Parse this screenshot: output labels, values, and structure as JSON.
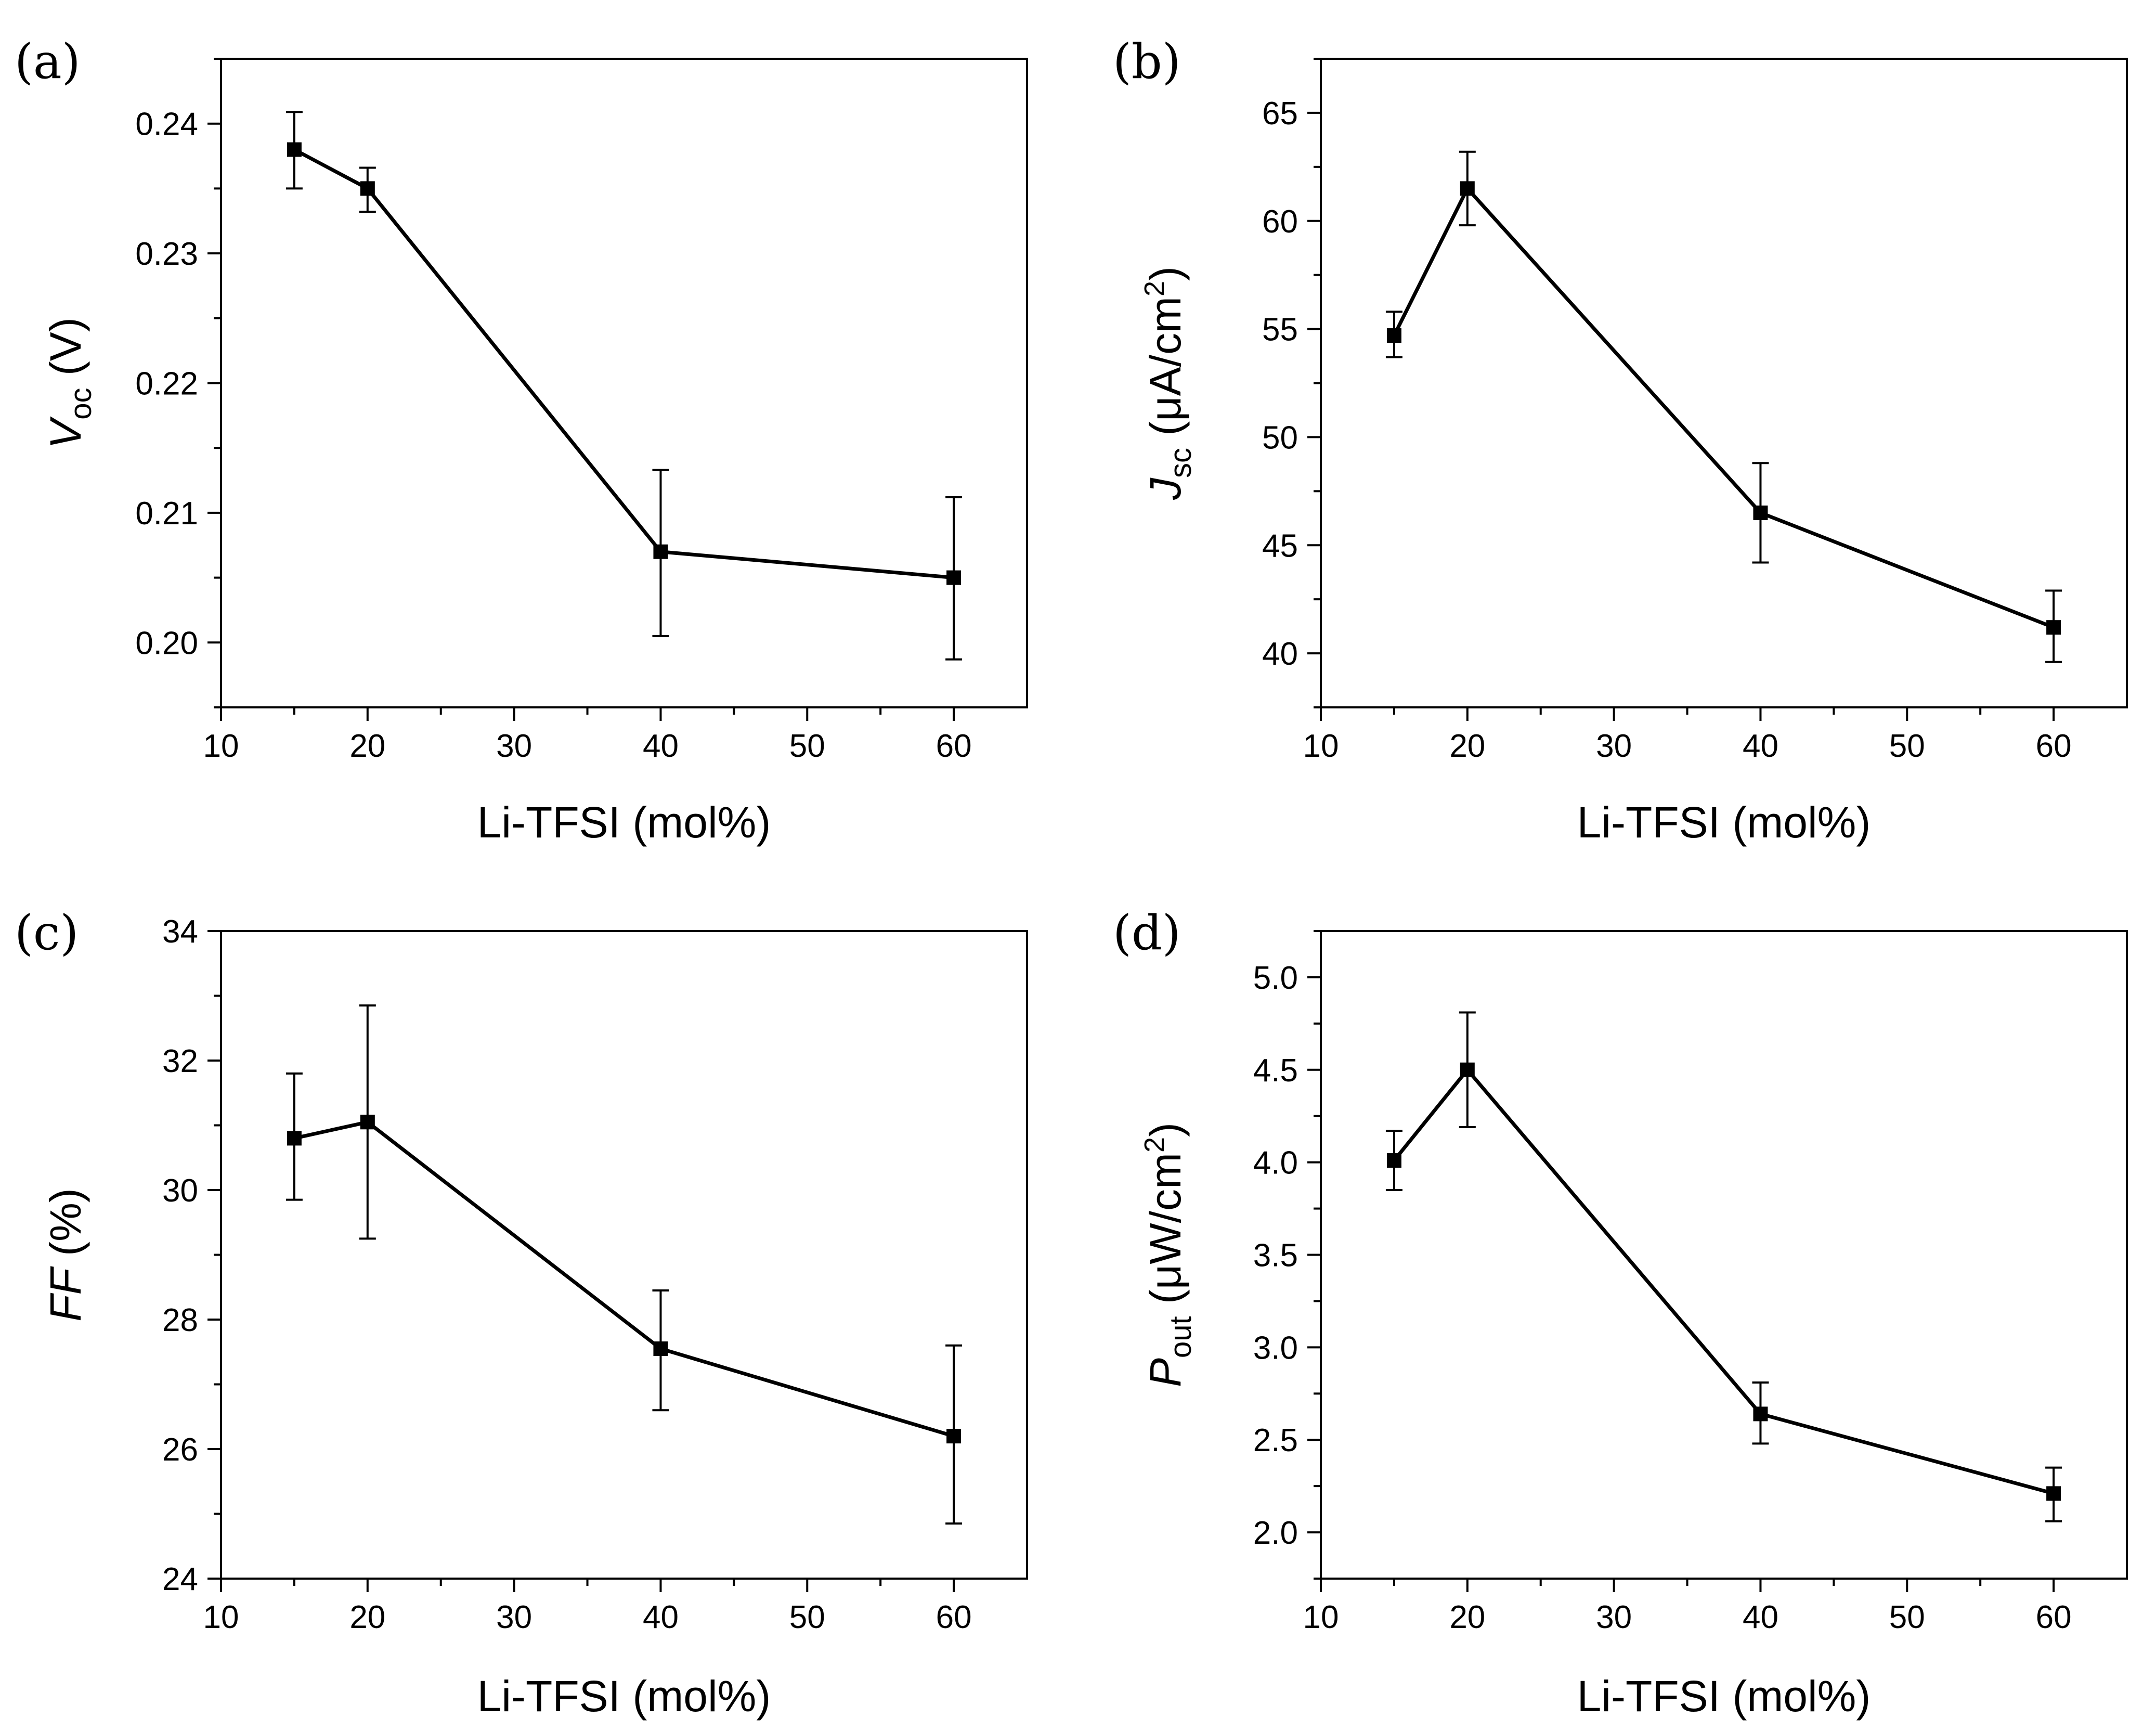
{
  "chart_data": [
    {
      "id": "a",
      "type": "line",
      "panel_label": "(a)",
      "xlabel": "Li-TFSI (mol%)",
      "ylabel": {
        "main": "V",
        "sub": "oc",
        "suffix": " (V)",
        "sup": ""
      },
      "xlim": [
        10,
        65
      ],
      "ylim": [
        0.195,
        0.245
      ],
      "xticks": [
        10,
        20,
        30,
        40,
        50,
        60
      ],
      "yticks": [
        0.2,
        0.21,
        0.22,
        0.23,
        0.24
      ],
      "ytick_labels": [
        "0.20",
        "0.21",
        "0.22",
        "0.23",
        "0.24"
      ],
      "x": [
        15,
        20,
        40,
        60
      ],
      "y": [
        0.238,
        0.235,
        0.207,
        0.205
      ],
      "err_low": [
        0.235,
        0.2332,
        0.2005,
        0.1987
      ],
      "err_high": [
        0.2409,
        0.2366,
        0.2133,
        0.2112
      ]
    },
    {
      "id": "b",
      "type": "line",
      "panel_label": "(b)",
      "xlabel": "Li-TFSI (mol%)",
      "ylabel": {
        "main": "J",
        "sub": "sc",
        "suffix": " (μA/cm",
        "sup": "2",
        "tail": ")"
      },
      "xlim": [
        10,
        65
      ],
      "ylim": [
        37.5,
        67.5
      ],
      "xticks": [
        10,
        20,
        30,
        40,
        50,
        60
      ],
      "yticks": [
        40,
        45,
        50,
        55,
        60,
        65
      ],
      "ytick_labels": [
        "40",
        "45",
        "50",
        "55",
        "60",
        "65"
      ],
      "x": [
        15,
        20,
        40,
        60
      ],
      "y": [
        54.7,
        61.5,
        46.5,
        41.2
      ],
      "err_low": [
        53.7,
        59.8,
        44.2,
        39.6
      ],
      "err_high": [
        55.8,
        63.2,
        48.8,
        42.9
      ]
    },
    {
      "id": "c",
      "type": "line",
      "panel_label": "(c)",
      "xlabel": "Li-TFSI (mol%)",
      "ylabel": {
        "main": "FF",
        "sub": "",
        "suffix": " (%)",
        "sup": ""
      },
      "xlim": [
        10,
        65
      ],
      "ylim": [
        24,
        34
      ],
      "xticks": [
        10,
        20,
        30,
        40,
        50,
        60
      ],
      "yticks": [
        24,
        26,
        28,
        30,
        32,
        34
      ],
      "ytick_labels": [
        "24",
        "26",
        "28",
        "30",
        "32",
        "34"
      ],
      "x": [
        15,
        20,
        40,
        60
      ],
      "y": [
        30.8,
        31.05,
        27.55,
        26.2
      ],
      "err_low": [
        29.85,
        29.25,
        26.6,
        24.85
      ],
      "err_high": [
        31.8,
        32.85,
        28.45,
        27.6
      ]
    },
    {
      "id": "d",
      "type": "line",
      "panel_label": "(d)",
      "xlabel": "Li-TFSI (mol%)",
      "ylabel": {
        "main": "P",
        "sub": "out",
        "suffix": " (μW/cm",
        "sup": "2",
        "tail": ")"
      },
      "xlim": [
        10,
        65
      ],
      "ylim": [
        1.75,
        5.25
      ],
      "xticks": [
        10,
        20,
        30,
        40,
        50,
        60
      ],
      "yticks": [
        2.0,
        2.5,
        3.0,
        3.5,
        4.0,
        4.5,
        5.0
      ],
      "ytick_labels": [
        "2.0",
        "2.5",
        "3.0",
        "3.5",
        "4.0",
        "4.5",
        "5.0"
      ],
      "x": [
        15,
        20,
        40,
        60
      ],
      "y": [
        4.01,
        4.5,
        2.64,
        2.21
      ],
      "err_low": [
        3.85,
        4.19,
        2.48,
        2.06
      ],
      "err_high": [
        4.17,
        4.81,
        2.81,
        2.35
      ]
    }
  ]
}
